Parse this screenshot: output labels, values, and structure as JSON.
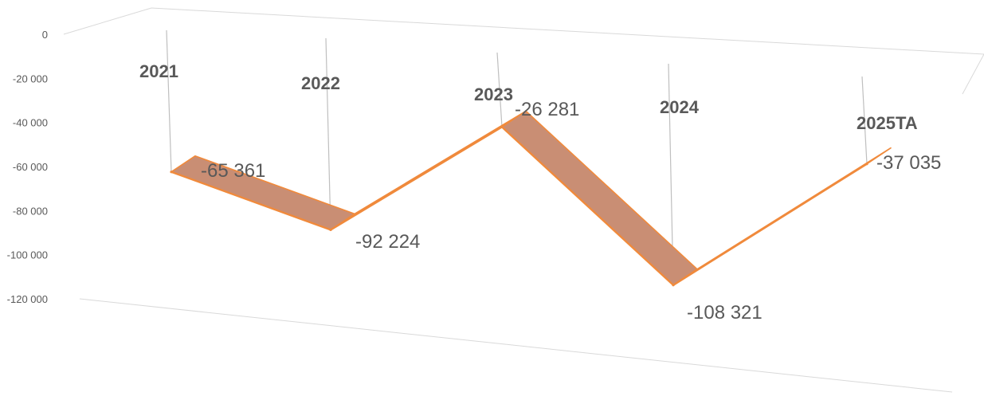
{
  "chart_data": {
    "type": "line",
    "title": "",
    "categories": [
      "2021",
      "2022",
      "2023",
      "2024",
      "2025TA"
    ],
    "values": [
      -65361,
      -92224,
      -26281,
      -108321,
      -37035
    ],
    "value_labels": [
      "-65 361",
      "-92 224",
      "-26 281",
      "-108 321",
      "-37 035"
    ],
    "y_ticks": [
      0,
      -20000,
      -40000,
      -60000,
      -80000,
      -100000,
      -120000
    ],
    "y_tick_labels": [
      "0",
      "-20 000",
      "-40 000",
      "-60 000",
      "-80 000",
      "-100 000",
      "-120 000"
    ],
    "ylim": [
      -120000,
      0
    ],
    "xlabel": "",
    "ylabel": "",
    "grid": false,
    "legend": "none",
    "style": "3d-ribbon",
    "colors": {
      "ribbon_face": "#c98e74",
      "ribbon_edge": "#f08a3c",
      "ribbon_shadow": "#5a3420",
      "text": "#595959",
      "frame": "#d9d9d9"
    }
  }
}
